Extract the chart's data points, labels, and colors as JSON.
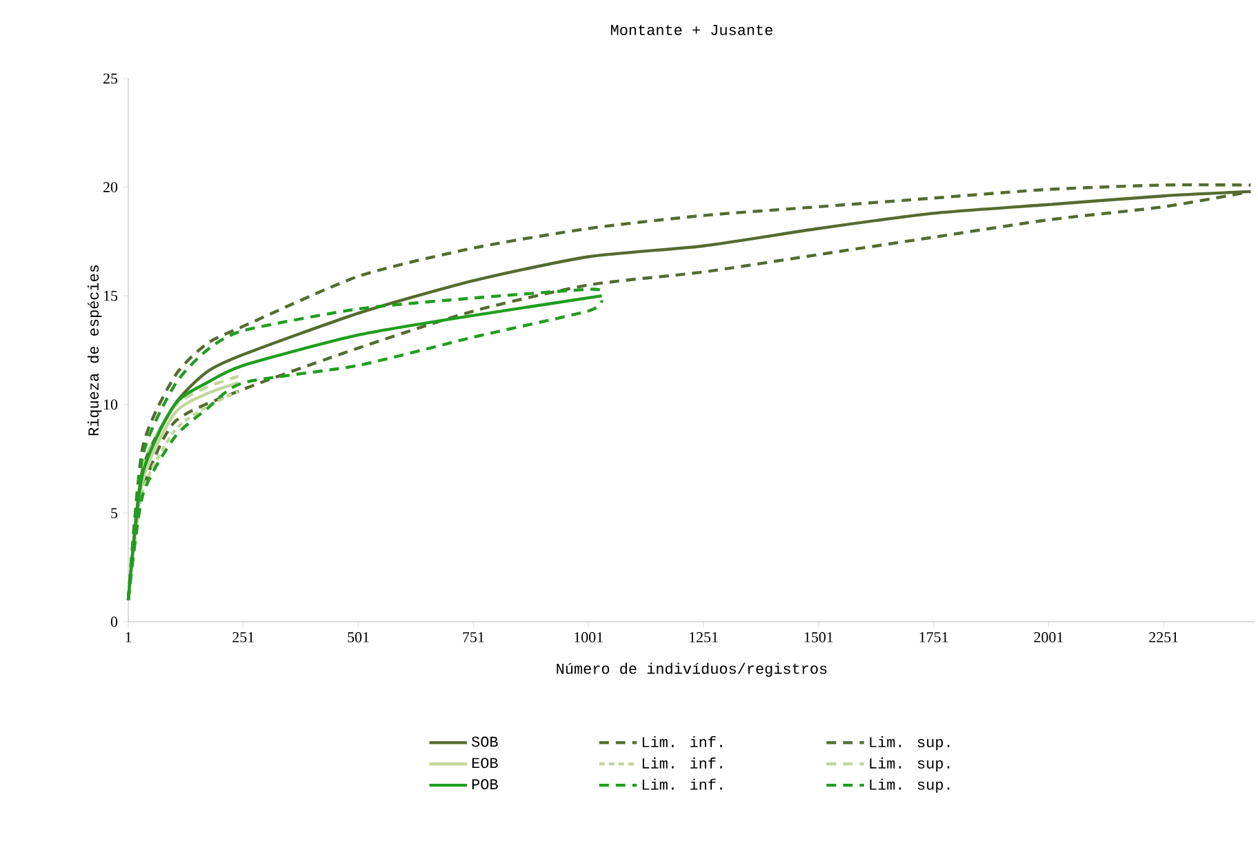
{
  "chart_data": {
    "type": "line",
    "title": "Montante + Jusante",
    "xlabel": "Número de indivíduos/registros",
    "ylabel": "Riqueza de espécies",
    "xlim": [
      1,
      2450
    ],
    "ylim": [
      0,
      25
    ],
    "xticks": [
      1,
      251,
      501,
      751,
      1001,
      1251,
      1501,
      1751,
      2001,
      2251
    ],
    "yticks": [
      0,
      5,
      10,
      15,
      20,
      25
    ],
    "grid": false,
    "legend": "bottom",
    "marker": "none",
    "series": [
      {
        "name": "SOB",
        "color": "#556b2f",
        "line_style": "solid",
        "x": [
          1,
          32,
          102,
          172,
          251,
          501,
          751,
          1001,
          1251,
          1501,
          1751,
          2001,
          2251,
          2440
        ],
        "values": [
          1,
          7.0,
          10.0,
          11.5,
          12.3,
          14.2,
          15.7,
          16.8,
          17.3,
          18.1,
          18.8,
          19.2,
          19.6,
          19.8
        ]
      },
      {
        "name": "Lim. inf.",
        "color": "#556b2f",
        "line_style": "dashed",
        "x": [
          1,
          32,
          102,
          251,
          501,
          751,
          1001,
          1251,
          1501,
          1751,
          2001,
          2251,
          2440
        ],
        "values": [
          1,
          6.0,
          9.2,
          10.7,
          12.6,
          14.3,
          15.5,
          16.1,
          16.9,
          17.7,
          18.5,
          19.1,
          19.8
        ]
      },
      {
        "name": "Lim. sup.",
        "color": "#556b2f",
        "line_style": "dashed",
        "x": [
          1,
          32,
          102,
          172,
          251,
          501,
          751,
          1001,
          1251,
          1501,
          1751,
          2001,
          2251,
          2440
        ],
        "values": [
          1,
          8.0,
          11.3,
          12.8,
          13.6,
          15.9,
          17.2,
          18.1,
          18.7,
          19.1,
          19.5,
          19.9,
          20.1,
          20.1
        ]
      },
      {
        "name": "EOB",
        "color": "#c3d69b",
        "line_style": "solid",
        "x": [
          1,
          32,
          102,
          172,
          240
        ],
        "values": [
          1,
          6.5,
          9.6,
          10.5,
          11.0
        ]
      },
      {
        "name": "Lim. inf.",
        "color": "#c3d69b",
        "line_style": "dotted",
        "x": [
          1,
          32,
          102,
          172,
          240
        ],
        "values": [
          1,
          6.0,
          8.8,
          9.9,
          10.6
        ]
      },
      {
        "name": "Lim. sup.",
        "color": "#c3d69b",
        "line_style": "dashed",
        "x": [
          1,
          32,
          102,
          172,
          240
        ],
        "values": [
          1,
          7.0,
          9.9,
          10.8,
          11.3
        ]
      },
      {
        "name": "POB",
        "color": "#1f9e1f",
        "line_style": "solid",
        "x": [
          1,
          32,
          102,
          172,
          251,
          501,
          751,
          1030
        ],
        "values": [
          1,
          6.8,
          10.0,
          11.0,
          11.8,
          13.2,
          14.1,
          15.0
        ]
      },
      {
        "name": "Lim. inf.",
        "color": "#1f9e1f",
        "line_style": "dashed",
        "x": [
          1,
          32,
          102,
          172,
          251,
          501,
          751,
          1000,
          1030
        ],
        "values": [
          1,
          5.8,
          8.5,
          9.8,
          11.0,
          11.8,
          13.1,
          14.3,
          14.8
        ]
      },
      {
        "name": "Lim. sup.",
        "color": "#1f9e1f",
        "line_style": "dashed",
        "x": [
          1,
          32,
          102,
          172,
          251,
          501,
          751,
          1000,
          1030
        ],
        "values": [
          1,
          7.6,
          10.9,
          12.5,
          13.4,
          14.4,
          14.9,
          15.3,
          15.2
        ]
      }
    ]
  }
}
